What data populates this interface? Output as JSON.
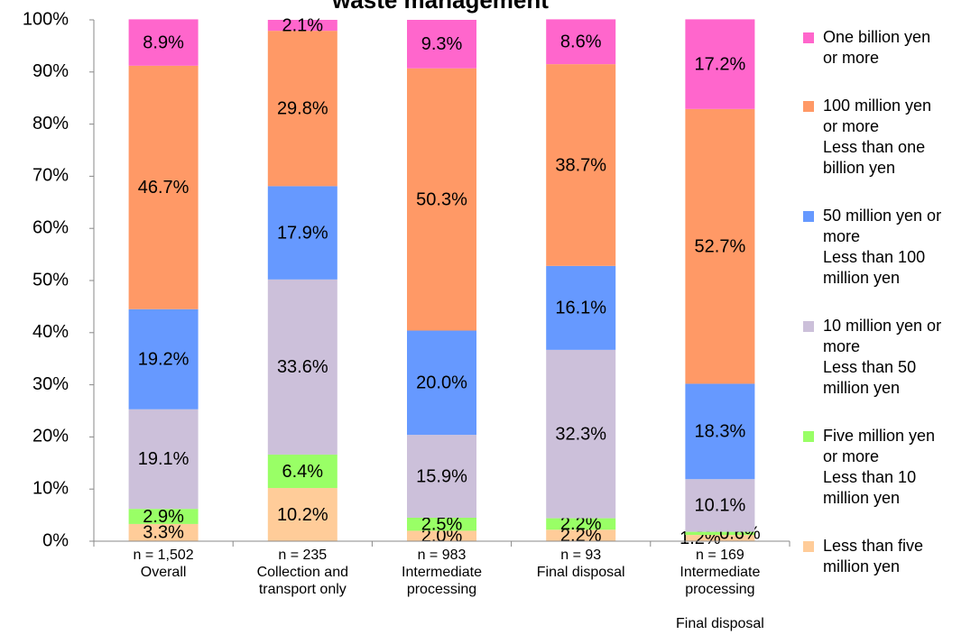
{
  "chart_data": {
    "type": "stacked_bar",
    "title": "waste management",
    "categories": [
      [
        "n = 1,502",
        "Overall"
      ],
      [
        "n = 235",
        "Collection and",
        "transport only"
      ],
      [
        "n = 983",
        "Intermediate",
        "processing"
      ],
      [
        "n = 93",
        "Final disposal"
      ],
      [
        "n = 169",
        "Intermediate",
        "processing",
        "Final disposal"
      ]
    ],
    "series": [
      {
        "name": [
          "Less than five",
          "million yen"
        ],
        "color": "#ffcc99",
        "values": [
          3.3,
          10.2,
          2.0,
          2.2,
          1.2
        ],
        "value_labels": [
          "3.3%",
          "10.2%",
          "2.0%",
          "2.2%",
          "1.2%"
        ]
      },
      {
        "name": [
          "Five million yen",
          "or more",
          "Less than 10",
          "million yen"
        ],
        "color": "#99ff66",
        "values": [
          2.9,
          6.4,
          2.5,
          2.2,
          0.6
        ],
        "value_labels": [
          "2.9%",
          "6.4%",
          "2.5%",
          "2.2%",
          "0.6%"
        ]
      },
      {
        "name": [
          "10 million yen or",
          "more",
          "Less than 50",
          "million yen"
        ],
        "color": "#ccc0da",
        "values": [
          19.1,
          33.6,
          15.9,
          32.3,
          10.1
        ],
        "value_labels": [
          "19.1%",
          "33.6%",
          "15.9%",
          "32.3%",
          "10.1%"
        ]
      },
      {
        "name": [
          "50 million yen or",
          "more",
          "Less than 100",
          "million yen"
        ],
        "color": "#6699ff",
        "values": [
          19.2,
          17.9,
          20.0,
          16.1,
          18.3
        ],
        "value_labels": [
          "19.2%",
          "17.9%",
          "20.0%",
          "16.1%",
          "18.3%"
        ]
      },
      {
        "name": [
          "100 million yen",
          "or more",
          "Less than one",
          "billion yen"
        ],
        "color": "#ff9966",
        "values": [
          46.7,
          29.8,
          50.3,
          38.7,
          52.7
        ],
        "value_labels": [
          "46.7%",
          "29.8%",
          "50.3%",
          "38.7%",
          "52.7%"
        ]
      },
      {
        "name": [
          "One billion yen",
          "or more"
        ],
        "color": "#ff66cc",
        "values": [
          8.9,
          2.1,
          9.3,
          8.6,
          17.2
        ],
        "value_labels": [
          "8.9%",
          "2.1%",
          "9.3%",
          "8.6%",
          "17.2%"
        ]
      }
    ],
    "ylim": [
      0,
      100
    ],
    "yticks": [
      {
        "value": 0,
        "label": "0%"
      },
      {
        "value": 10,
        "label": "10%"
      },
      {
        "value": 20,
        "label": "20%"
      },
      {
        "value": 30,
        "label": "30%"
      },
      {
        "value": 40,
        "label": "40%"
      },
      {
        "value": 50,
        "label": "50%"
      },
      {
        "value": 60,
        "label": "60%"
      },
      {
        "value": 70,
        "label": "70%"
      },
      {
        "value": 80,
        "label": "80%"
      },
      {
        "value": 90,
        "label": "90%"
      },
      {
        "value": 100,
        "label": "100%"
      }
    ],
    "legend": "right"
  }
}
